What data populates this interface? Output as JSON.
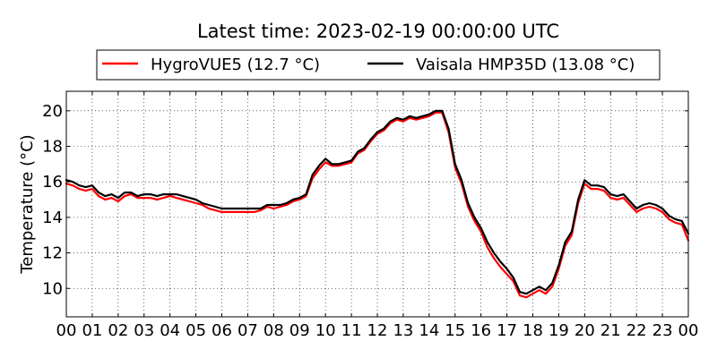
{
  "chart_data": {
    "type": "line",
    "title": "Latest time: 2023-02-19 00:00:00 UTC",
    "ylabel": "Temperature (°C)",
    "xlabel": "",
    "xlim": [
      0,
      24
    ],
    "ylim": [
      8.4,
      21.1
    ],
    "x_ticks": [
      0,
      1,
      2,
      3,
      4,
      5,
      6,
      7,
      8,
      9,
      10,
      11,
      12,
      13,
      14,
      15,
      16,
      17,
      18,
      19,
      20,
      21,
      22,
      23,
      24
    ],
    "x_tick_labels": [
      "00",
      "01",
      "02",
      "03",
      "04",
      "05",
      "06",
      "07",
      "08",
      "09",
      "10",
      "11",
      "12",
      "13",
      "14",
      "15",
      "16",
      "17",
      "18",
      "19",
      "20",
      "21",
      "22",
      "23",
      "00"
    ],
    "y_ticks": [
      10,
      12,
      14,
      16,
      18,
      20
    ],
    "y_tick_labels": [
      "10",
      "12",
      "14",
      "16",
      "18",
      "20"
    ],
    "grid": true,
    "legend_position": "top",
    "series": [
      {
        "name": "HygroVUE5 (12.7 °C)",
        "color": "#ff0000",
        "x": [
          0,
          0.25,
          0.5,
          0.75,
          1,
          1.25,
          1.5,
          1.75,
          2,
          2.25,
          2.5,
          2.75,
          3,
          3.25,
          3.5,
          3.75,
          4,
          4.25,
          4.5,
          4.75,
          5,
          5.25,
          5.5,
          5.75,
          6,
          6.25,
          6.5,
          6.75,
          7,
          7.25,
          7.5,
          7.75,
          8,
          8.25,
          8.5,
          8.75,
          9,
          9.25,
          9.5,
          9.75,
          10,
          10.25,
          10.5,
          10.75,
          11,
          11.25,
          11.5,
          11.75,
          12,
          12.25,
          12.5,
          12.75,
          13,
          13.25,
          13.5,
          13.75,
          14,
          14.25,
          14.5,
          14.75,
          15,
          15.25,
          15.5,
          15.75,
          16,
          16.25,
          16.5,
          16.75,
          17,
          17.25,
          17.5,
          17.75,
          18,
          18.25,
          18.5,
          18.75,
          19,
          19.25,
          19.5,
          19.75,
          20,
          20.25,
          20.5,
          20.75,
          21,
          21.25,
          21.5,
          21.75,
          22,
          22.25,
          22.5,
          22.75,
          23,
          23.25,
          23.5,
          23.75,
          24
        ],
        "y": [
          15.9,
          15.8,
          15.6,
          15.5,
          15.6,
          15.2,
          15.0,
          15.1,
          14.9,
          15.2,
          15.3,
          15.1,
          15.1,
          15.1,
          15.0,
          15.1,
          15.2,
          15.1,
          15.0,
          14.9,
          14.8,
          14.7,
          14.5,
          14.4,
          14.3,
          14.3,
          14.3,
          14.3,
          14.3,
          14.3,
          14.4,
          14.6,
          14.5,
          14.6,
          14.7,
          14.9,
          15.0,
          15.2,
          16.2,
          16.7,
          17.1,
          16.9,
          16.9,
          17.0,
          17.1,
          17.6,
          17.8,
          18.3,
          18.7,
          18.9,
          19.3,
          19.5,
          19.4,
          19.6,
          19.5,
          19.6,
          19.7,
          19.9,
          19.9,
          18.8,
          16.8,
          15.9,
          14.6,
          13.8,
          13.2,
          12.3,
          11.7,
          11.2,
          10.8,
          10.4,
          9.6,
          9.5,
          9.7,
          9.9,
          9.7,
          10.1,
          11.1,
          12.4,
          13.0,
          14.8,
          15.9,
          15.6,
          15.6,
          15.5,
          15.1,
          15.0,
          15.1,
          14.7,
          14.3,
          14.5,
          14.6,
          14.5,
          14.3,
          13.9,
          13.7,
          13.6,
          12.7
        ]
      },
      {
        "name": "Vaisala HMP35D (13.08 °C)",
        "color": "#000000",
        "x": [
          0,
          0.25,
          0.5,
          0.75,
          1,
          1.25,
          1.5,
          1.75,
          2,
          2.25,
          2.5,
          2.75,
          3,
          3.25,
          3.5,
          3.75,
          4,
          4.25,
          4.5,
          4.75,
          5,
          5.25,
          5.5,
          5.75,
          6,
          6.25,
          6.5,
          6.75,
          7,
          7.25,
          7.5,
          7.75,
          8,
          8.25,
          8.5,
          8.75,
          9,
          9.25,
          9.5,
          9.75,
          10,
          10.25,
          10.5,
          10.75,
          11,
          11.25,
          11.5,
          11.75,
          12,
          12.25,
          12.5,
          12.75,
          13,
          13.25,
          13.5,
          13.75,
          14,
          14.25,
          14.5,
          14.75,
          15,
          15.25,
          15.5,
          15.75,
          16,
          16.25,
          16.5,
          16.75,
          17,
          17.25,
          17.5,
          17.75,
          18,
          18.25,
          18.5,
          18.75,
          19,
          19.25,
          19.5,
          19.75,
          20,
          20.25,
          20.5,
          20.75,
          21,
          21.25,
          21.5,
          21.75,
          22,
          22.25,
          22.5,
          22.75,
          23,
          23.25,
          23.5,
          23.75,
          24
        ],
        "y": [
          16.1,
          16.0,
          15.8,
          15.7,
          15.8,
          15.4,
          15.2,
          15.3,
          15.1,
          15.4,
          15.4,
          15.2,
          15.3,
          15.3,
          15.2,
          15.3,
          15.3,
          15.3,
          15.2,
          15.1,
          15.0,
          14.8,
          14.7,
          14.6,
          14.5,
          14.5,
          14.5,
          14.5,
          14.5,
          14.5,
          14.5,
          14.7,
          14.7,
          14.7,
          14.8,
          15.0,
          15.1,
          15.3,
          16.4,
          16.9,
          17.3,
          17.0,
          17.0,
          17.1,
          17.2,
          17.7,
          17.9,
          18.4,
          18.8,
          19.0,
          19.4,
          19.6,
          19.5,
          19.7,
          19.6,
          19.7,
          19.8,
          20.0,
          20.0,
          19.0,
          17.0,
          16.1,
          14.8,
          14.0,
          13.4,
          12.6,
          12.0,
          11.5,
          11.1,
          10.6,
          9.8,
          9.7,
          9.9,
          10.1,
          9.9,
          10.3,
          11.3,
          12.6,
          13.2,
          15.0,
          16.1,
          15.8,
          15.8,
          15.7,
          15.3,
          15.2,
          15.3,
          14.9,
          14.5,
          14.7,
          14.8,
          14.7,
          14.5,
          14.1,
          13.9,
          13.8,
          13.08
        ]
      }
    ]
  }
}
